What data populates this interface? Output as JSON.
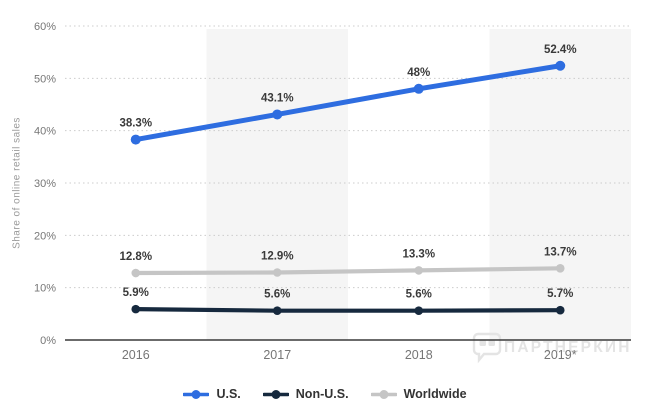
{
  "chart_data": {
    "type": "line",
    "title": "",
    "ylabel": "Share of online retail sales",
    "xlabel": "",
    "categories": [
      "2016",
      "2017",
      "2018",
      "2019*"
    ],
    "series": [
      {
        "name": "U.S.",
        "color": "#2e6de0",
        "values": [
          38.3,
          43.1,
          48,
          52.4
        ],
        "labels": [
          "38.3%",
          "43.1%",
          "48%",
          "52.4%"
        ]
      },
      {
        "name": "Non-U.S.",
        "color": "#16293e",
        "values": [
          5.9,
          5.6,
          5.6,
          5.7
        ],
        "labels": [
          "5.9%",
          "5.6%",
          "5.6%",
          "5.7%"
        ]
      },
      {
        "name": "Worldwide",
        "color": "#c5c5c5",
        "values": [
          12.8,
          12.9,
          13.3,
          13.7
        ],
        "labels": [
          "12.8%",
          "12.9%",
          "13.3%",
          "13.7%"
        ]
      }
    ],
    "y_ticks": [
      "0%",
      "10%",
      "20%",
      "30%",
      "40%",
      "50%",
      "60%"
    ],
    "ylim": [
      0,
      60
    ],
    "grid": "horizontal-dotted",
    "legend_position": "bottom",
    "plot_band_columns": [
      1,
      3
    ],
    "colors": {
      "plot_band": "#f5f5f5",
      "gridline": "#cccccc",
      "axis_line": "#3a3a3a",
      "tick_label": "#767676",
      "value_label": "#3a3a3a",
      "y_title": "#9a9a9a"
    }
  },
  "watermark": {
    "icon": "speech-bubble-logo",
    "text": "ПАРТНЕРКИН",
    "color": "#e4e4e4"
  }
}
